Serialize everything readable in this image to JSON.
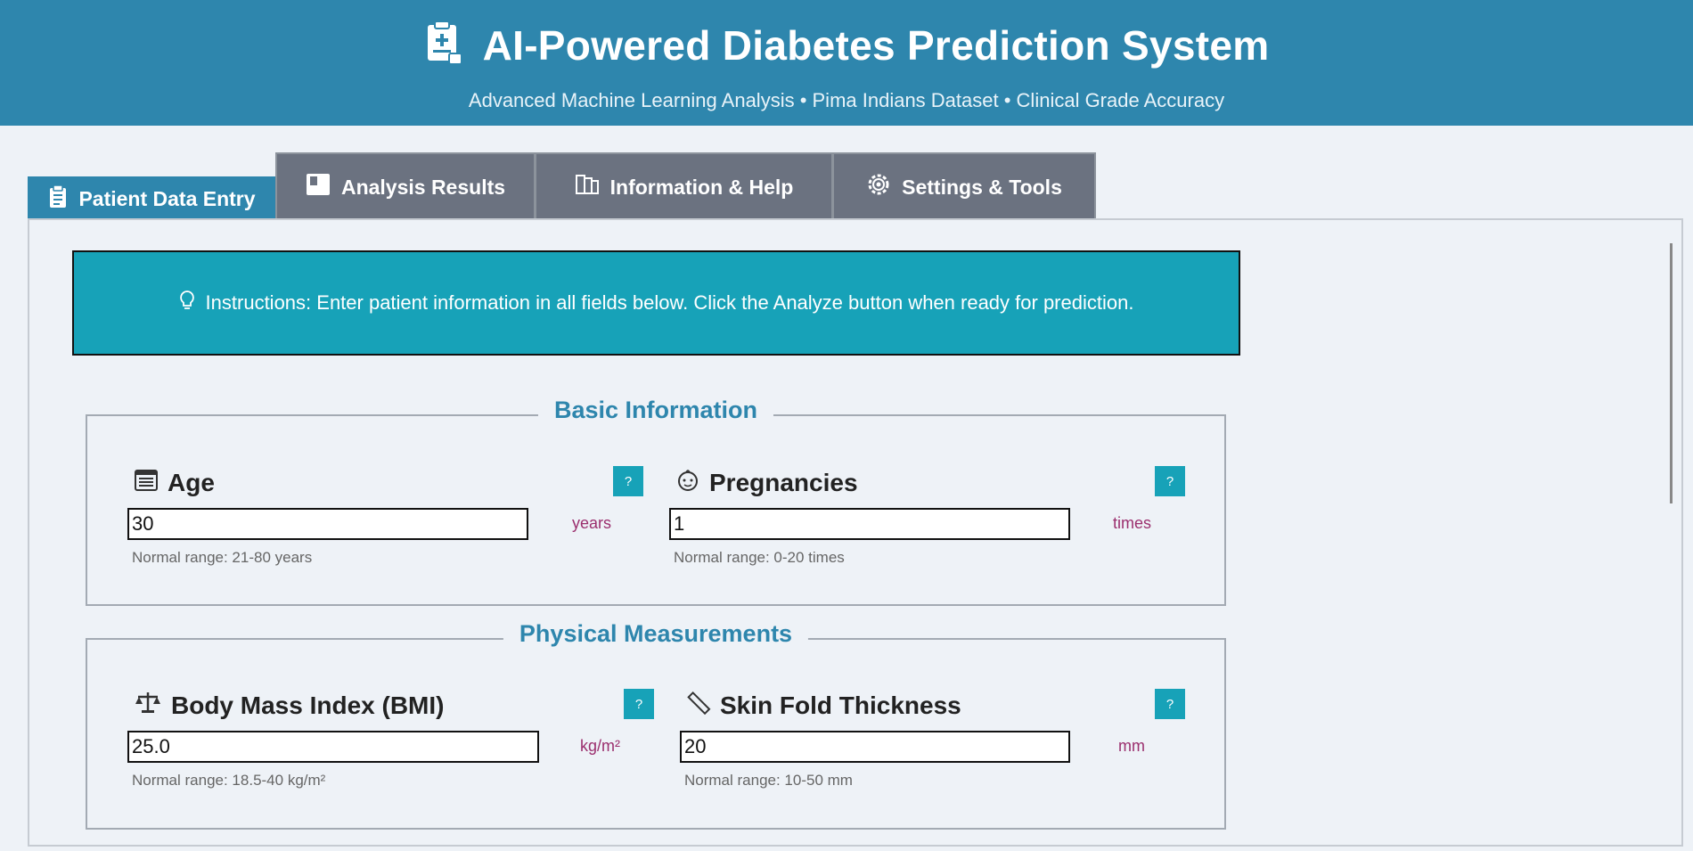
{
  "header": {
    "title": "AI-Powered Diabetes Prediction System",
    "subtitle": "Advanced Machine Learning Analysis • Pima Indians Dataset • Clinical Grade Accuracy",
    "icon": "clipboard-medical-icon"
  },
  "tabs": [
    {
      "label": "Patient Data Entry",
      "icon": "clipboard-icon",
      "active": true
    },
    {
      "label": "Analysis Results",
      "icon": "chart-box-icon",
      "active": false
    },
    {
      "label": "Information & Help",
      "icon": "books-icon",
      "active": false
    },
    {
      "label": "Settings & Tools",
      "icon": "gear-icon",
      "active": false
    }
  ],
  "instructions": {
    "text": "Instructions: Enter patient information in all fields below. Click the Analyze button when ready for prediction.",
    "icon": "lightbulb-icon"
  },
  "groups": {
    "basic": {
      "title": "Basic Information",
      "age": {
        "label": "Age",
        "icon": "calendar-icon",
        "value": "30",
        "unit": "years",
        "range": "Normal range: 21-80 years",
        "help": "?"
      },
      "pregnancies": {
        "label": "Pregnancies",
        "icon": "baby-icon",
        "value": "1",
        "unit": "times",
        "range": "Normal range: 0-20 times",
        "help": "?"
      }
    },
    "physical": {
      "title": "Physical Measurements",
      "bmi": {
        "label": "Body Mass Index (BMI)",
        "icon": "scale-icon",
        "value": "25.0",
        "unit": "kg/m²",
        "range": "Normal range: 18.5-40 kg/m²",
        "help": "?"
      },
      "skin": {
        "label": "Skin Fold Thickness",
        "icon": "ruler-icon",
        "value": "20",
        "unit": "mm",
        "range": "Normal range: 10-50 mm",
        "help": "?"
      }
    }
  },
  "colors": {
    "header": "#2e86ad",
    "accent": "#17a2b8",
    "unit": "#9b2f6e",
    "tab_inactive": "#6b7280"
  }
}
